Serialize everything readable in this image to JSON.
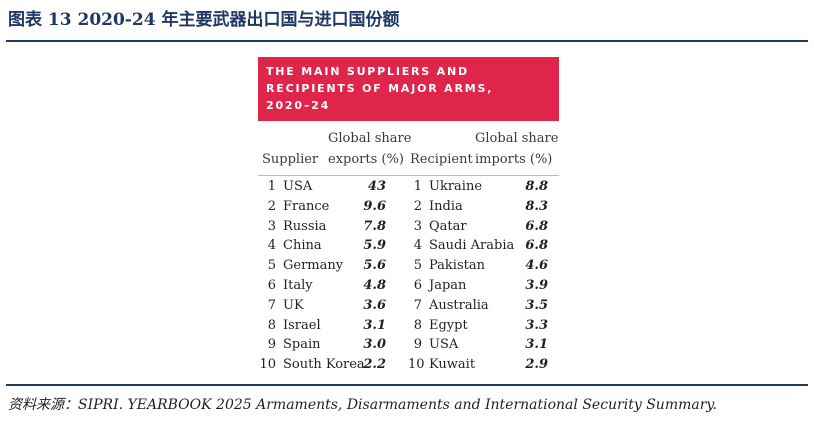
{
  "figure_title": "图表 13   2020-24 年主要武器出口国与进口国份额",
  "card": {
    "title_lines": [
      "The main suppliers and",
      "recipients of major arms,",
      "2020–24"
    ],
    "headers": {
      "supplier": "Supplier",
      "exports_line1": "Global share",
      "exports_line2": "exports (%)",
      "recipient": "Recipient",
      "imports_line1": "Global share",
      "imports_line2": "imports (%)"
    },
    "rows": [
      {
        "rank": "1",
        "supplier": "USA",
        "export_share": "43",
        "recipient_rank": "1",
        "recipient": "Ukraine",
        "import_share": "8.8"
      },
      {
        "rank": "2",
        "supplier": "France",
        "export_share": "9.6",
        "recipient_rank": "2",
        "recipient": "India",
        "import_share": "8.3"
      },
      {
        "rank": "3",
        "supplier": "Russia",
        "export_share": "7.8",
        "recipient_rank": "3",
        "recipient": "Qatar",
        "import_share": "6.8"
      },
      {
        "rank": "4",
        "supplier": "China",
        "export_share": "5.9",
        "recipient_rank": "4",
        "recipient": "Saudi Arabia",
        "import_share": "6.8"
      },
      {
        "rank": "5",
        "supplier": "Germany",
        "export_share": "5.6",
        "recipient_rank": "5",
        "recipient": "Pakistan",
        "import_share": "4.6"
      },
      {
        "rank": "6",
        "supplier": "Italy",
        "export_share": "4.8",
        "recipient_rank": "6",
        "recipient": "Japan",
        "import_share": "3.9"
      },
      {
        "rank": "7",
        "supplier": "UK",
        "export_share": "3.6",
        "recipient_rank": "7",
        "recipient": "Australia",
        "import_share": "3.5"
      },
      {
        "rank": "8",
        "supplier": "Israel",
        "export_share": "3.1",
        "recipient_rank": "8",
        "recipient": "Egypt",
        "import_share": "3.3"
      },
      {
        "rank": "9",
        "supplier": "Spain",
        "export_share": "3.0",
        "recipient_rank": "9",
        "recipient": "USA",
        "import_share": "3.1"
      },
      {
        "rank": "10",
        "supplier": "South Korea",
        "export_share": "2.2",
        "recipient_rank": "10",
        "recipient": "Kuwait",
        "import_share": "2.9"
      }
    ]
  },
  "source_text": "资料来源：SIPRI. YEARBOOK 2025 Armaments, Disarmaments and International Security Summary.",
  "colors": {
    "banner": "#e0254a",
    "title": "#1f3864",
    "rule": "#1f3864"
  }
}
